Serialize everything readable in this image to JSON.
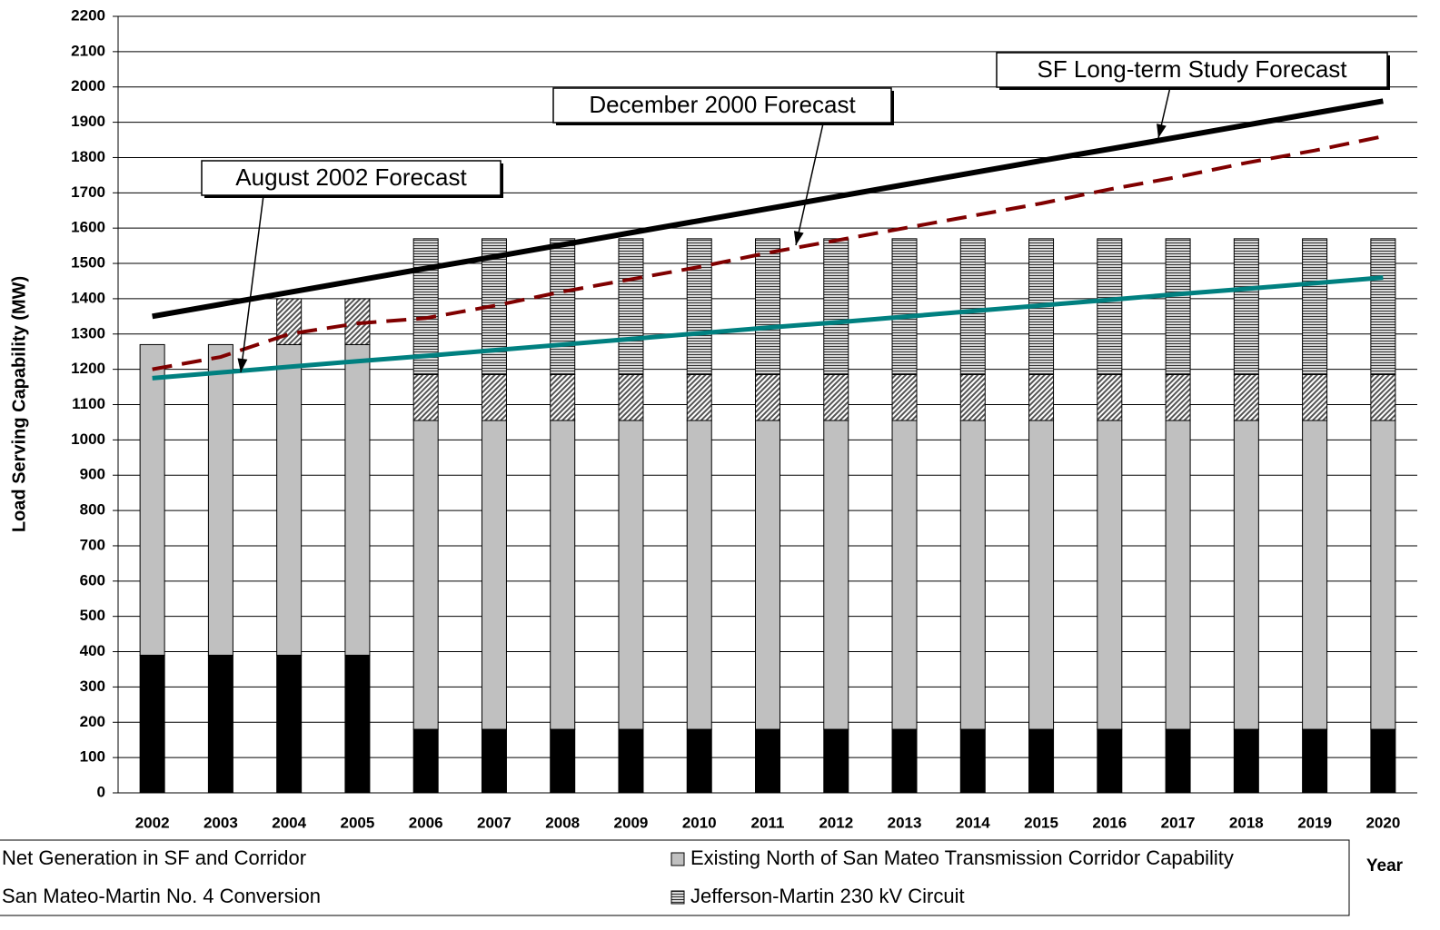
{
  "chart_data": {
    "type": "bar",
    "stacked": true,
    "y_label": "Load Serving Capability (MW)",
    "x_label": "Year",
    "categories": [
      "2002",
      "2003",
      "2004",
      "2005",
      "2006",
      "2007",
      "2008",
      "2009",
      "2010",
      "2011",
      "2012",
      "2013",
      "2014",
      "2015",
      "2016",
      "2017",
      "2018",
      "2019",
      "2020"
    ],
    "ylim": [
      0,
      2200
    ],
    "yticks": [
      0,
      100,
      200,
      300,
      400,
      500,
      600,
      700,
      800,
      900,
      1000,
      1100,
      1200,
      1300,
      1400,
      1500,
      1600,
      1700,
      1800,
      1900,
      2000,
      2100,
      2200
    ],
    "grid": true,
    "series": [
      {
        "name": "Net Generation in SF and Corridor",
        "type": "bar",
        "color": "#000000",
        "pattern": "solid",
        "values": [
          390,
          390,
          390,
          390,
          180,
          180,
          180,
          180,
          180,
          180,
          180,
          180,
          180,
          180,
          180,
          180,
          180,
          180,
          180
        ]
      },
      {
        "name": "Existing North of San Mateo Transmission Corridor Capability",
        "type": "bar",
        "color": "#c0c0c0",
        "pattern": "solid",
        "values": [
          880,
          880,
          880,
          880,
          875,
          875,
          875,
          875,
          875,
          875,
          875,
          875,
          875,
          875,
          875,
          875,
          875,
          875,
          875
        ]
      },
      {
        "name": "San Mateo-Martin No. 4 Conversion",
        "type": "bar",
        "color": "#808080",
        "pattern": "diagonal",
        "values": [
          0,
          0,
          130,
          130,
          130,
          130,
          130,
          130,
          130,
          130,
          130,
          130,
          130,
          130,
          130,
          130,
          130,
          130,
          130
        ]
      },
      {
        "name": "Jefferson-Martin 230 kV Circuit",
        "type": "bar",
        "color": "#606060",
        "pattern": "horizontal",
        "values": [
          0,
          0,
          0,
          0,
          385,
          385,
          385,
          385,
          385,
          385,
          385,
          385,
          385,
          385,
          385,
          385,
          385,
          385,
          385
        ]
      },
      {
        "name": "SF Long-term Study Forecast",
        "type": "line",
        "color": "#000000",
        "dashed": false,
        "values": [
          1350,
          1384,
          1418,
          1452,
          1486,
          1519,
          1553,
          1587,
          1621,
          1655,
          1689,
          1723,
          1757,
          1791,
          1824,
          1858,
          1892,
          1926,
          1960
        ]
      },
      {
        "name": "December 2000 Forecast",
        "type": "line",
        "color": "#800000",
        "dashed": true,
        "values": [
          1200,
          1235,
          1300,
          1330,
          1345,
          1380,
          1420,
          1455,
          1490,
          1530,
          1565,
          1600,
          1635,
          1670,
          1710,
          1745,
          1785,
          1820,
          1860
        ]
      },
      {
        "name": "August 2002 Forecast",
        "type": "line",
        "color": "#008080",
        "dashed": false,
        "values": [
          1175,
          1191,
          1207,
          1223,
          1238,
          1254,
          1270,
          1286,
          1302,
          1318,
          1333,
          1349,
          1365,
          1381,
          1397,
          1413,
          1428,
          1444,
          1460
        ]
      }
    ]
  }
}
